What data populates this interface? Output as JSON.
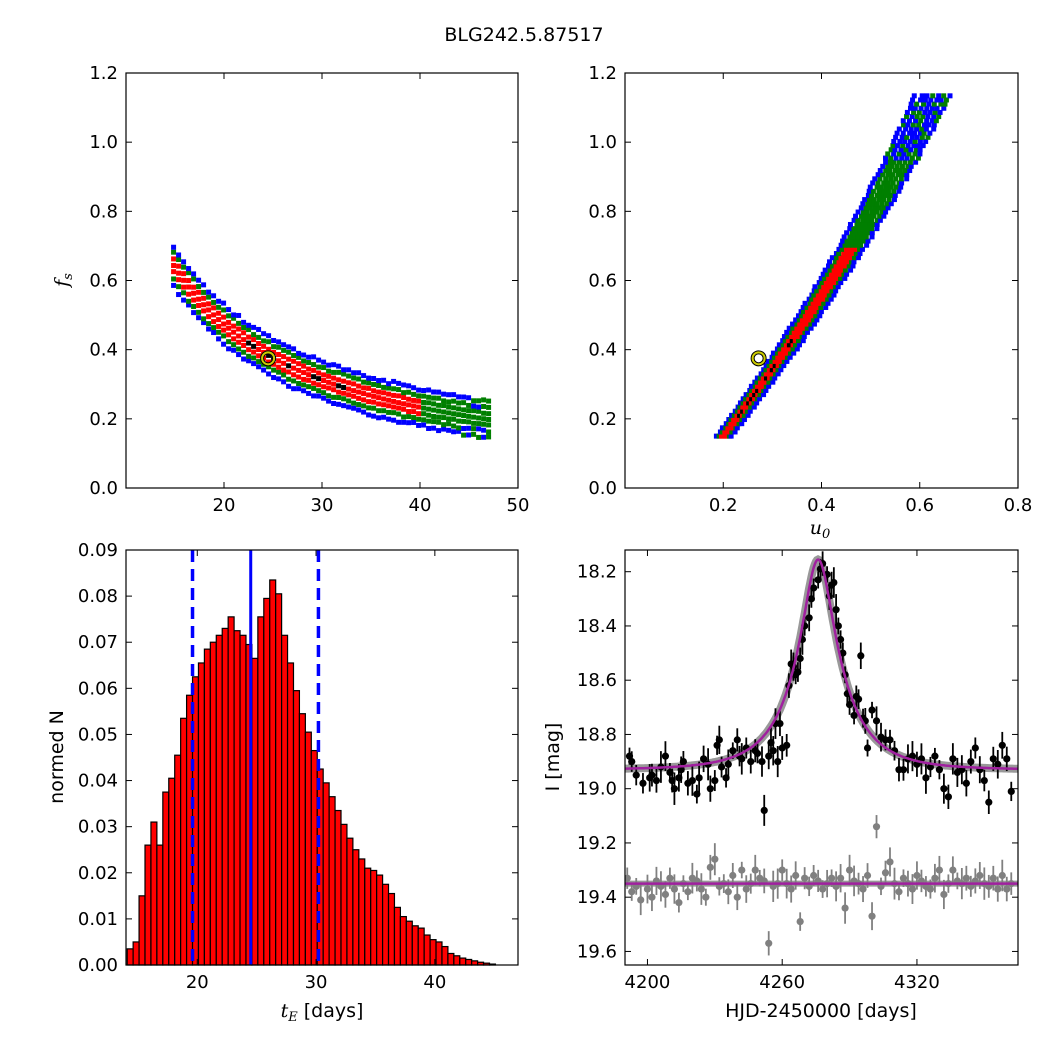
{
  "title": "BLG242.5.87517",
  "chart_data": [
    {
      "type": "heatmap",
      "panel": "top-left",
      "xlabel": "",
      "ylabel": "f_s",
      "xlim": [
        10,
        50
      ],
      "ylim": [
        0.0,
        1.2
      ],
      "xticks": [
        20,
        30,
        40,
        50
      ],
      "yticks": [
        0.0,
        0.2,
        0.4,
        0.6,
        0.8,
        1.0,
        1.2
      ],
      "xtick_labels": [
        "20",
        "30",
        "40",
        "50"
      ],
      "ytick_labels": [
        "0.0",
        "0.2",
        "0.4",
        "0.6",
        "0.8",
        "1.0",
        "1.2"
      ],
      "best_fit": {
        "x": 24.5,
        "y": 0.375
      },
      "levels": {
        "blue": "3-sigma",
        "green": "2-sigma",
        "red": "1-sigma"
      },
      "colors": {
        "blue": "#0000ff",
        "green": "#007f00",
        "red": "#ff0000",
        "marker": "#cccc00"
      }
    },
    {
      "type": "heatmap",
      "panel": "top-right",
      "xlabel": "u_0",
      "ylabel": "",
      "xlim": [
        0.0,
        0.8
      ],
      "ylim": [
        0.0,
        1.2
      ],
      "xticks": [
        0.2,
        0.4,
        0.6,
        0.8
      ],
      "yticks": [
        0.0,
        0.2,
        0.4,
        0.6,
        0.8,
        1.0,
        1.2
      ],
      "xtick_labels": [
        "0.2",
        "0.4",
        "0.6",
        "0.8"
      ],
      "ytick_labels": [
        "0.0",
        "0.2",
        "0.4",
        "0.6",
        "0.8",
        "1.0",
        "1.2"
      ],
      "best_fit": {
        "x": 0.272,
        "y": 0.375
      },
      "colors": {
        "blue": "#0000ff",
        "green": "#007f00",
        "red": "#ff0000",
        "marker": "#cccc00"
      }
    },
    {
      "type": "bar",
      "panel": "bottom-left",
      "xlabel": "t_E [days]",
      "ylabel": "normed N",
      "xlim": [
        14,
        47
      ],
      "ylim": [
        0.0,
        0.09
      ],
      "xticks": [
        20,
        30,
        40
      ],
      "xtick_labels": [
        "20",
        "30",
        "40"
      ],
      "yticks": [
        0.0,
        0.01,
        0.02,
        0.03,
        0.04,
        0.05,
        0.06,
        0.07,
        0.08,
        0.09
      ],
      "ytick_labels": [
        "0.00",
        "0.01",
        "0.02",
        "0.03",
        "0.04",
        "0.05",
        "0.06",
        "0.07",
        "0.08",
        "0.09"
      ],
      "bin_start": 14.1,
      "bin_width": 0.5,
      "values": [
        0.0035,
        0.005,
        0.015,
        0.026,
        0.031,
        0.026,
        0.0375,
        0.0405,
        0.0455,
        0.0535,
        0.0585,
        0.0625,
        0.0655,
        0.0685,
        0.07,
        0.0715,
        0.073,
        0.0755,
        0.0725,
        0.0715,
        0.0695,
        0.0665,
        0.0755,
        0.0795,
        0.0835,
        0.0805,
        0.0715,
        0.0655,
        0.0595,
        0.0545,
        0.0505,
        0.0465,
        0.0425,
        0.0395,
        0.0365,
        0.0335,
        0.0305,
        0.0275,
        0.025,
        0.023,
        0.021,
        0.0205,
        0.0195,
        0.0175,
        0.0155,
        0.0125,
        0.0105,
        0.0095,
        0.0085,
        0.008,
        0.0065,
        0.0055,
        0.005,
        0.004,
        0.0025,
        0.002,
        0.0015,
        0.0012,
        0.0009,
        0.0006,
        0.0004,
        0.0002
      ],
      "median": 24.5,
      "sigma_lines": [
        19.6,
        30.2
      ],
      "colors": {
        "bars": "#ff0000",
        "lines": "#0000ff"
      }
    },
    {
      "type": "scatter",
      "panel": "bottom-right",
      "xlabel": "HJD-2450000 [days]",
      "ylabel": "I [mag]",
      "xlim": [
        4190,
        4365
      ],
      "ylim": [
        19.65,
        18.12
      ],
      "xticks": [
        4200,
        4260,
        4320
      ],
      "xtick_labels": [
        "4200",
        "4260",
        "4320"
      ],
      "yticks": [
        18.2,
        18.4,
        18.6,
        18.8,
        19.0,
        19.2,
        19.4,
        19.6
      ],
      "ytick_labels": [
        "18.2",
        "18.4",
        "18.6",
        "18.8",
        "19.0",
        "19.2",
        "19.4",
        "19.6"
      ],
      "model": {
        "t0": 4276,
        "u0": 0.272,
        "tE": 24.5,
        "baseline": 18.93,
        "blend_fraction": 0.375
      },
      "residual_baseline": 19.35,
      "series": [
        {
          "role": "photometry",
          "color": "#000000",
          "x": [
            4192,
            4193,
            4195,
            4198,
            4201,
            4202,
            4204,
            4206,
            4208,
            4210,
            4211,
            4212,
            4214,
            4215,
            4216,
            4218,
            4220,
            4222,
            4223,
            4225,
            4227,
            4228,
            4230,
            4231,
            4232,
            4233,
            4235,
            4236,
            4238,
            4240,
            4241,
            4242,
            4244,
            4246,
            4248,
            4249,
            4251,
            4252,
            4254,
            4255,
            4256,
            4257,
            4258,
            4259,
            4260,
            4262,
            4263,
            4264,
            4265,
            4266,
            4267,
            4268,
            4269,
            4270,
            4272,
            4273,
            4274,
            4276,
            4277,
            4278,
            4280,
            4281,
            4282,
            4283,
            4284,
            4285,
            4286,
            4287,
            4288,
            4289,
            4290,
            4292,
            4293,
            4294,
            4295,
            4296,
            4297,
            4298,
            4300,
            4302,
            4304,
            4306,
            4308,
            4310,
            4312,
            4314,
            4316,
            4318,
            4320,
            4322,
            4324,
            4326,
            4328,
            4330,
            4332,
            4334,
            4336,
            4338,
            4340,
            4342,
            4344,
            4346,
            4348,
            4350,
            4352,
            4354,
            4356,
            4358,
            4360,
            4362
          ],
          "y": [
            18.88,
            18.9,
            18.95,
            18.98,
            18.96,
            18.95,
            18.97,
            18.92,
            18.88,
            18.94,
            18.97,
            19.0,
            18.96,
            18.93,
            18.9,
            18.98,
            18.97,
            19.02,
            18.96,
            18.89,
            18.91,
            19.0,
            18.97,
            18.84,
            18.82,
            18.92,
            18.96,
            18.91,
            18.86,
            18.82,
            18.88,
            18.89,
            18.85,
            18.9,
            18.86,
            18.87,
            18.9,
            19.08,
            18.88,
            18.83,
            18.86,
            18.76,
            18.9,
            18.76,
            18.85,
            18.84,
            18.62,
            18.54,
            18.55,
            18.58,
            18.57,
            18.52,
            18.45,
            18.4,
            18.37,
            18.3,
            18.26,
            18.23,
            18.19,
            18.17,
            18.21,
            18.29,
            18.25,
            18.24,
            18.34,
            18.4,
            18.45,
            18.5,
            18.58,
            18.65,
            18.69,
            18.73,
            18.66,
            18.67,
            18.51,
            18.74,
            18.75,
            18.85,
            18.71,
            18.75,
            18.81,
            18.82,
            18.82,
            18.86,
            18.93,
            18.93,
            18.89,
            18.88,
            18.91,
            18.89,
            18.96,
            18.92,
            18.88,
            18.93,
            19.0,
            19.03,
            18.89,
            18.94,
            18.93,
            18.98,
            18.9,
            18.85,
            18.93,
            18.97,
            19.05,
            18.89,
            18.91,
            18.84,
            18.89,
            19.01
          ]
        },
        {
          "role": "residuals",
          "color": "#808080",
          "x": [
            4191,
            4193,
            4195,
            4197,
            4200,
            4202,
            4204,
            4206,
            4208,
            4210,
            4212,
            4214,
            4216,
            4218,
            4220,
            4222,
            4224,
            4226,
            4228,
            4230,
            4232,
            4234,
            4236,
            4238,
            4240,
            4242,
            4244,
            4246,
            4248,
            4250,
            4252,
            4254,
            4256,
            4258,
            4260,
            4262,
            4264,
            4266,
            4268,
            4270,
            4272,
            4274,
            4276,
            4278,
            4280,
            4282,
            4284,
            4286,
            4288,
            4290,
            4292,
            4294,
            4296,
            4298,
            4300,
            4302,
            4304,
            4306,
            4308,
            4310,
            4312,
            4314,
            4316,
            4318,
            4320,
            4322,
            4324,
            4326,
            4328,
            4330,
            4332,
            4334,
            4336,
            4338,
            4340,
            4342,
            4344,
            4346,
            4348,
            4350,
            4352,
            4354,
            4356,
            4358,
            4360,
            4362
          ],
          "y": [
            19.33,
            19.38,
            19.36,
            19.41,
            19.37,
            19.4,
            19.34,
            19.36,
            19.39,
            19.33,
            19.37,
            19.42,
            19.35,
            19.38,
            19.33,
            19.34,
            19.37,
            19.4,
            19.29,
            19.26,
            19.36,
            19.35,
            19.38,
            19.32,
            19.4,
            19.3,
            19.37,
            19.35,
            19.3,
            19.33,
            19.34,
            19.57,
            19.36,
            19.35,
            19.3,
            19.35,
            19.37,
            19.32,
            19.49,
            19.33,
            19.36,
            19.32,
            19.34,
            19.37,
            19.35,
            19.33,
            19.36,
            19.33,
            19.44,
            19.3,
            19.34,
            19.35,
            19.37,
            19.32,
            19.47,
            19.14,
            19.36,
            19.31,
            19.27,
            19.35,
            19.38,
            19.33,
            19.35,
            19.37,
            19.32,
            19.34,
            19.36,
            19.37,
            19.33,
            19.3,
            19.39,
            19.35,
            19.3,
            19.34,
            19.35,
            19.33,
            19.36,
            19.34,
            19.32,
            19.35,
            19.36,
            19.33,
            19.37,
            19.32,
            19.37,
            19.35
          ]
        }
      ],
      "colors": {
        "model": "#a0209f",
        "model_band": "#808080"
      }
    }
  ]
}
